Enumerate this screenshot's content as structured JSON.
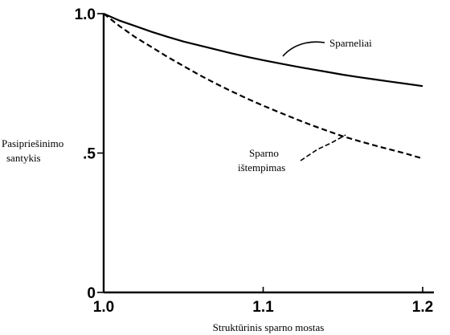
{
  "chart_data": {
    "type": "line",
    "xlabel": "Struktūrinis sparno mostas",
    "ylabel_lines": [
      "Pasipriešinimo",
      "santykis"
    ],
    "xlim": [
      1.0,
      1.2
    ],
    "ylim": [
      0,
      1.0
    ],
    "x_ticks": [
      {
        "value": 1.0,
        "label": "1.0"
      },
      {
        "value": 1.1,
        "label": "1.1"
      },
      {
        "value": 1.2,
        "label": "1.2"
      }
    ],
    "y_ticks": [
      {
        "value": 0,
        "label": "0"
      },
      {
        "value": 0.5,
        "label": ".5"
      },
      {
        "value": 1.0,
        "label": "1.0"
      }
    ],
    "grid": false,
    "series": [
      {
        "name": "Sparneliai",
        "style": "solid",
        "x": [
          1.0,
          1.01,
          1.02,
          1.03,
          1.04,
          1.05,
          1.06,
          1.07,
          1.08,
          1.09,
          1.1,
          1.11,
          1.12,
          1.13,
          1.14,
          1.15,
          1.16,
          1.17,
          1.18,
          1.19,
          1.2
        ],
        "y": [
          1.0,
          0.975,
          0.955,
          0.935,
          0.917,
          0.9,
          0.886,
          0.872,
          0.858,
          0.845,
          0.833,
          0.822,
          0.811,
          0.801,
          0.791,
          0.781,
          0.772,
          0.764,
          0.756,
          0.748,
          0.74
        ]
      },
      {
        "name_lines": [
          "Sparno",
          "ištempimas"
        ],
        "style": "dashed",
        "x": [
          1.0,
          1.01,
          1.02,
          1.03,
          1.04,
          1.05,
          1.06,
          1.07,
          1.08,
          1.09,
          1.1,
          1.11,
          1.12,
          1.13,
          1.14,
          1.15,
          1.16,
          1.17,
          1.18,
          1.19,
          1.2
        ],
        "y": [
          1.0,
          0.955,
          0.915,
          0.88,
          0.845,
          0.812,
          0.78,
          0.75,
          0.722,
          0.695,
          0.67,
          0.646,
          0.623,
          0.601,
          0.58,
          0.56,
          0.543,
          0.527,
          0.512,
          0.497,
          0.48
        ]
      }
    ]
  }
}
